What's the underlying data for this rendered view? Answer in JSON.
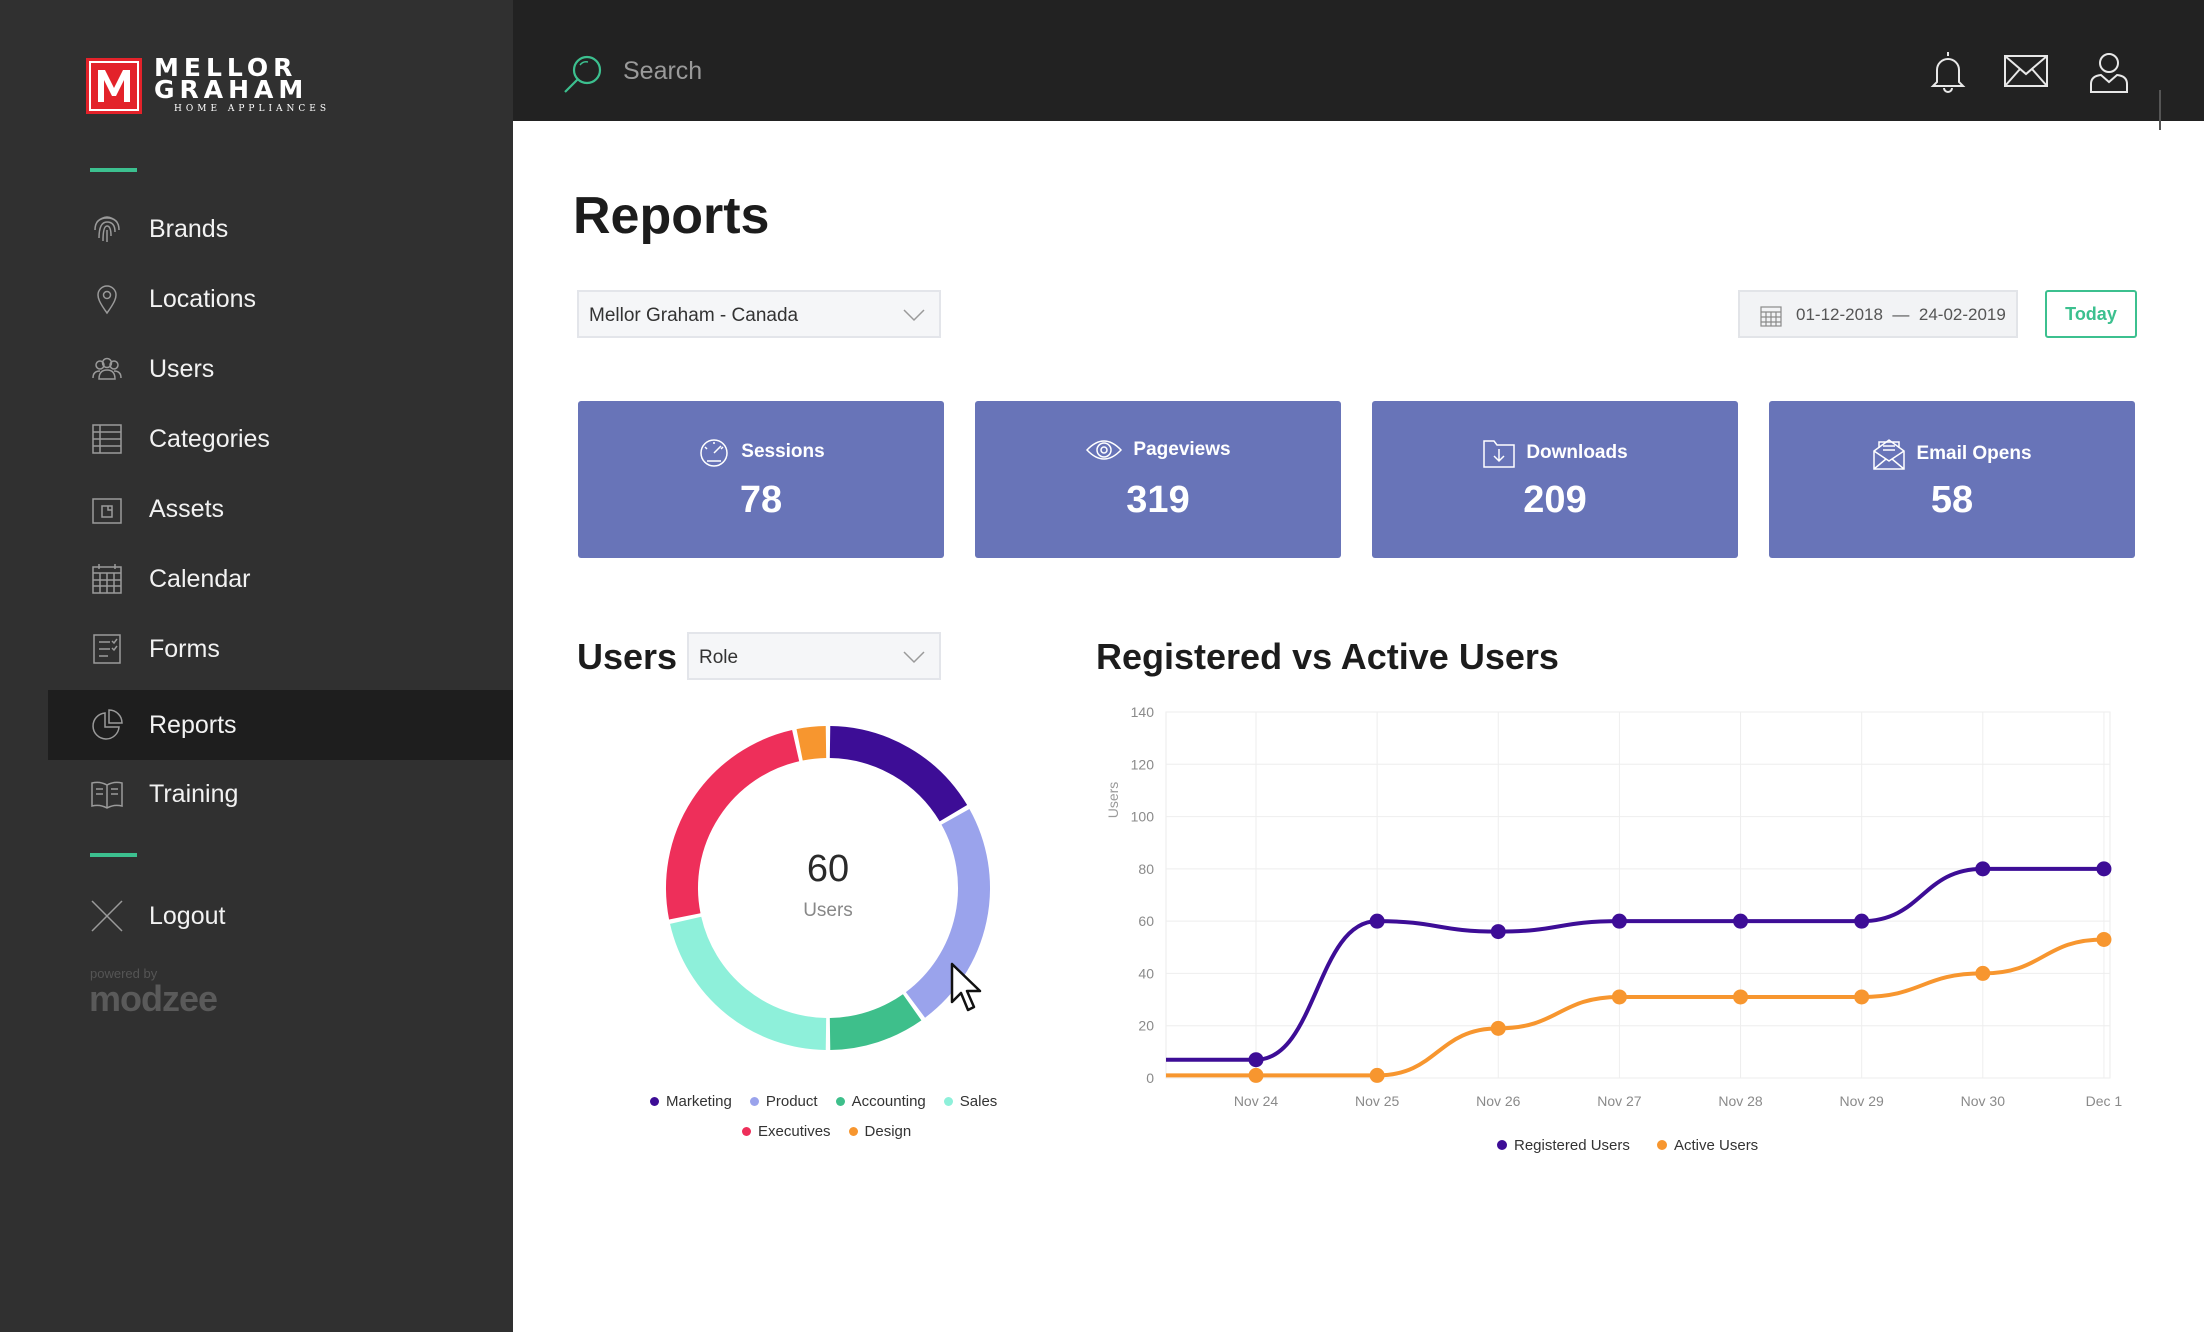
{
  "brand": {
    "line1": "MELLOR",
    "line2": "GRAHAM",
    "tagline": "HOME APPLIANCES"
  },
  "sidebar": {
    "items": [
      {
        "label": "Brands",
        "icon": "fingerprint-icon"
      },
      {
        "label": "Locations",
        "icon": "map-pin-icon"
      },
      {
        "label": "Users",
        "icon": "users-icon"
      },
      {
        "label": "Categories",
        "icon": "list-icon"
      },
      {
        "label": "Assets",
        "icon": "file-icon"
      },
      {
        "label": "Calendar",
        "icon": "calendar-icon"
      },
      {
        "label": "Forms",
        "icon": "form-icon"
      },
      {
        "label": "Reports",
        "icon": "pie-chart-icon",
        "active": true
      },
      {
        "label": "Training",
        "icon": "book-icon"
      }
    ],
    "logout": "Logout",
    "powered_by": "powered by",
    "powered_brand": "modzee"
  },
  "topbar": {
    "search_placeholder": "Search"
  },
  "page": {
    "title": "Reports",
    "location_select": "Mellor Graham - Canada",
    "date_from": "01-12-2018",
    "date_sep": "—",
    "date_to": "24-02-2019",
    "today_button": "Today"
  },
  "stats": [
    {
      "label": "Sessions",
      "value": "78",
      "icon": "speedometer-icon"
    },
    {
      "label": "Pageviews",
      "value": "319",
      "icon": "eye-icon"
    },
    {
      "label": "Downloads",
      "value": "209",
      "icon": "download-folder-icon"
    },
    {
      "label": "Email Opens",
      "value": "58",
      "icon": "open-envelope-icon"
    }
  ],
  "users_panel": {
    "title": "Users",
    "filter_select": "Role",
    "center_value": "60",
    "center_label": "Users"
  },
  "line_panel": {
    "title": "Registered vs Active Users"
  },
  "colors": {
    "accent": "#3cc08f",
    "card": "#6874b8",
    "registered": "#3d0d96",
    "active": "#f7962f"
  },
  "chart_data": [
    {
      "type": "pie",
      "variant": "donut",
      "title": "Users",
      "center_value": 60,
      "slices": [
        {
          "name": "Marketing",
          "value": 10,
          "color": "#3d0d96"
        },
        {
          "name": "Product",
          "value": 14,
          "color": "#9aa3ec"
        },
        {
          "name": "Accounting",
          "value": 6,
          "color": "#3ebf8b"
        },
        {
          "name": "Sales",
          "value": 13,
          "color": "#8ef0da"
        },
        {
          "name": "Executives",
          "value": 15,
          "color": "#ee2f5a"
        },
        {
          "name": "Design",
          "value": 2,
          "color": "#f7962f"
        }
      ],
      "legend_placement": "bottom"
    },
    {
      "type": "line",
      "title": "Registered vs Active Users",
      "categories": [
        "Nov 24",
        "Nov 25",
        "Nov 26",
        "Nov 27",
        "Nov 28",
        "Nov 29",
        "Nov 30",
        "Dec 1"
      ],
      "series": [
        {
          "name": "Registered Users",
          "values": [
            7,
            60,
            56,
            60,
            60,
            60,
            80,
            80
          ],
          "color": "#3d0d96"
        },
        {
          "name": "Active Users",
          "values": [
            1,
            1,
            19,
            31,
            31,
            31,
            40,
            53
          ],
          "color": "#f7962f"
        }
      ],
      "ylabel": "Users",
      "ylim": [
        0,
        140
      ],
      "yticks": [
        0,
        20,
        40,
        60,
        80,
        100,
        120,
        140
      ],
      "grid": true,
      "legend_placement": "bottom"
    }
  ]
}
